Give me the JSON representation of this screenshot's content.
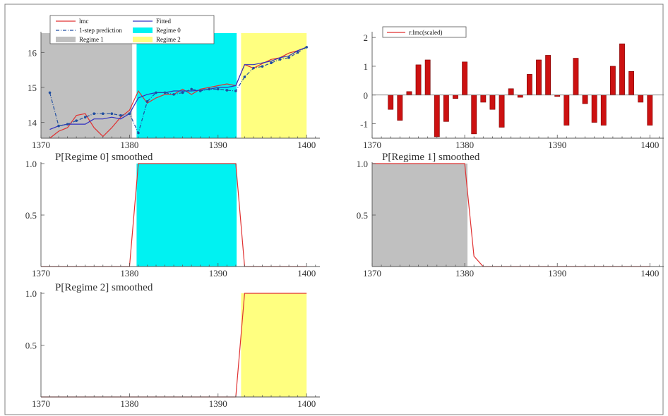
{
  "colors": {
    "regime0": "#00f2f2",
    "regime1": "#c0c0c0",
    "regime2": "#ffff80",
    "actual": "#e03030",
    "fitted": "#3030c0",
    "prediction": "#204ea0",
    "bars": "#cc1111",
    "prob": "#e03030",
    "axis": "#555555"
  },
  "chart_data": [
    {
      "id": "fit",
      "type": "line",
      "title": "",
      "xlim": [
        1370,
        1401.5
      ],
      "ylim": [
        13.55,
        16.55
      ],
      "xticks": [
        1370,
        1380,
        1390,
        1400
      ],
      "yticks": [
        14,
        15,
        16
      ],
      "shading": [
        {
          "name": "Regime 1",
          "from": 1370,
          "to": 1380.3,
          "color": "#c0c0c0"
        },
        {
          "name": "Regime 0",
          "from": 1380.8,
          "to": 1392.1,
          "color": "#00f2f2"
        },
        {
          "name": "Regime 2",
          "from": 1392.6,
          "to": 1400,
          "color": "#ffff80"
        }
      ],
      "x": [
        1371,
        1372,
        1373,
        1374,
        1375,
        1376,
        1377,
        1378,
        1379,
        1380,
        1381,
        1382,
        1383,
        1384,
        1385,
        1386,
        1387,
        1388,
        1389,
        1390,
        1391,
        1392,
        1393,
        1394,
        1395,
        1396,
        1397,
        1398,
        1399,
        1400
      ],
      "series": [
        {
          "name": "lmc",
          "style": "solid",
          "color": "#e03030",
          "values": [
            13.55,
            13.75,
            13.85,
            14.2,
            14.25,
            13.85,
            13.6,
            13.85,
            14.15,
            14.35,
            14.9,
            14.55,
            14.7,
            14.8,
            14.8,
            14.95,
            14.8,
            14.95,
            15.0,
            15.05,
            15.1,
            15.05,
            15.65,
            15.55,
            15.68,
            15.8,
            15.85,
            15.98,
            16.05,
            16.15
          ]
        },
        {
          "name": "Fitted",
          "style": "solid",
          "color": "#3030c0",
          "values": [
            13.8,
            13.9,
            13.95,
            13.95,
            13.95,
            14.1,
            14.1,
            14.15,
            14.1,
            14.25,
            14.7,
            14.8,
            14.85,
            14.85,
            14.9,
            14.9,
            14.9,
            14.92,
            14.95,
            15.0,
            15.0,
            15.05,
            15.65,
            15.65,
            15.7,
            15.75,
            15.85,
            15.9,
            16.05,
            16.15
          ]
        },
        {
          "name": "1-step prediction",
          "style": "dash-dot",
          "color": "#204ea0",
          "values": [
            14.85,
            13.9,
            13.95,
            14.05,
            14.15,
            14.25,
            14.25,
            14.25,
            14.2,
            14.25,
            13.7,
            14.6,
            14.85,
            14.85,
            14.8,
            14.85,
            14.95,
            14.9,
            14.95,
            14.95,
            14.92,
            14.9,
            15.3,
            15.55,
            15.6,
            15.7,
            15.8,
            15.85,
            16.0,
            16.15
          ]
        }
      ],
      "legend": [
        {
          "label": "lmc",
          "kind": "line",
          "color": "#e03030"
        },
        {
          "label": "Fitted",
          "kind": "line",
          "color": "#3030c0"
        },
        {
          "label": "1-step prediction",
          "kind": "dashdot",
          "color": "#204ea0"
        },
        {
          "label": "Regime 0",
          "kind": "fill",
          "color": "#00f2f2"
        },
        {
          "label": "Regime 1",
          "kind": "fill",
          "color": "#c0c0c0"
        },
        {
          "label": "Regime 2",
          "kind": "fill",
          "color": "#ffff80"
        }
      ],
      "legend_position": "top-left"
    },
    {
      "id": "res",
      "type": "bar",
      "title": "",
      "xlim": [
        1370,
        1401.5
      ],
      "ylim": [
        -1.5,
        2.15
      ],
      "xticks": [
        1370,
        1380,
        1390,
        1400
      ],
      "yticks": [
        -1,
        0,
        1,
        2
      ],
      "x": [
        1372,
        1373,
        1374,
        1375,
        1376,
        1377,
        1378,
        1379,
        1380,
        1381,
        1382,
        1383,
        1384,
        1385,
        1386,
        1387,
        1388,
        1389,
        1390,
        1391,
        1392,
        1393,
        1394,
        1395,
        1396,
        1397,
        1398,
        1399,
        1400
      ],
      "series": [
        {
          "name": "r:lmc(scaled)",
          "color": "#cc1111",
          "values": [
            -0.5,
            -0.88,
            0.12,
            1.05,
            1.22,
            -1.45,
            -0.92,
            -0.12,
            1.15,
            -1.35,
            -0.25,
            -0.5,
            -1.12,
            0.22,
            -0.08,
            0.72,
            1.22,
            1.38,
            -0.05,
            -1.05,
            1.28,
            -0.3,
            -0.95,
            -1.05,
            1.0,
            1.78,
            0.82,
            -0.25,
            -1.05
          ]
        }
      ],
      "legend": [
        {
          "label": "r:lmc(scaled)",
          "kind": "line",
          "color": "#e03030"
        }
      ],
      "legend_position": "top-left"
    },
    {
      "id": "p0",
      "type": "line",
      "title": "P[Regime 0] smoothed",
      "xlim": [
        1370,
        1401.5
      ],
      "ylim": [
        0,
        1.0
      ],
      "xticks": [
        1370,
        1380,
        1390,
        1400
      ],
      "yticks": [
        0.5,
        1.0
      ],
      "shading": [
        {
          "from": 1380.8,
          "to": 1392.1,
          "color": "#00f2f2"
        }
      ],
      "x": [
        1370,
        1380,
        1381,
        1392,
        1393,
        1400
      ],
      "series": [
        {
          "name": "P[Regime 0]",
          "color": "#e03030",
          "values": [
            0,
            0,
            1,
            1,
            0,
            0
          ]
        }
      ]
    },
    {
      "id": "p1",
      "type": "line",
      "title": "P[Regime 1] smoothed",
      "xlim": [
        1370,
        1401.5
      ],
      "ylim": [
        0,
        1.0
      ],
      "xticks": [
        1370,
        1380,
        1390,
        1400
      ],
      "yticks": [
        0.5,
        1.0
      ],
      "shading": [
        {
          "from": 1370,
          "to": 1380.3,
          "color": "#c0c0c0"
        }
      ],
      "x": [
        1370,
        1380,
        1381,
        1382,
        1400
      ],
      "series": [
        {
          "name": "P[Regime 1]",
          "color": "#e03030",
          "values": [
            1,
            1,
            0.1,
            0,
            0
          ]
        }
      ]
    },
    {
      "id": "p2",
      "type": "line",
      "title": "P[Regime 2] smoothed",
      "xlim": [
        1370,
        1401.5
      ],
      "ylim": [
        0,
        1.0
      ],
      "xticks": [
        1370,
        1380,
        1390,
        1400
      ],
      "yticks": [
        0.5,
        1.0
      ],
      "shading": [
        {
          "from": 1392.6,
          "to": 1400,
          "color": "#ffff80"
        }
      ],
      "x": [
        1370,
        1392,
        1393,
        1400
      ],
      "series": [
        {
          "name": "P[Regime 2]",
          "color": "#e03030",
          "values": [
            0,
            0,
            1,
            1
          ]
        }
      ]
    }
  ]
}
